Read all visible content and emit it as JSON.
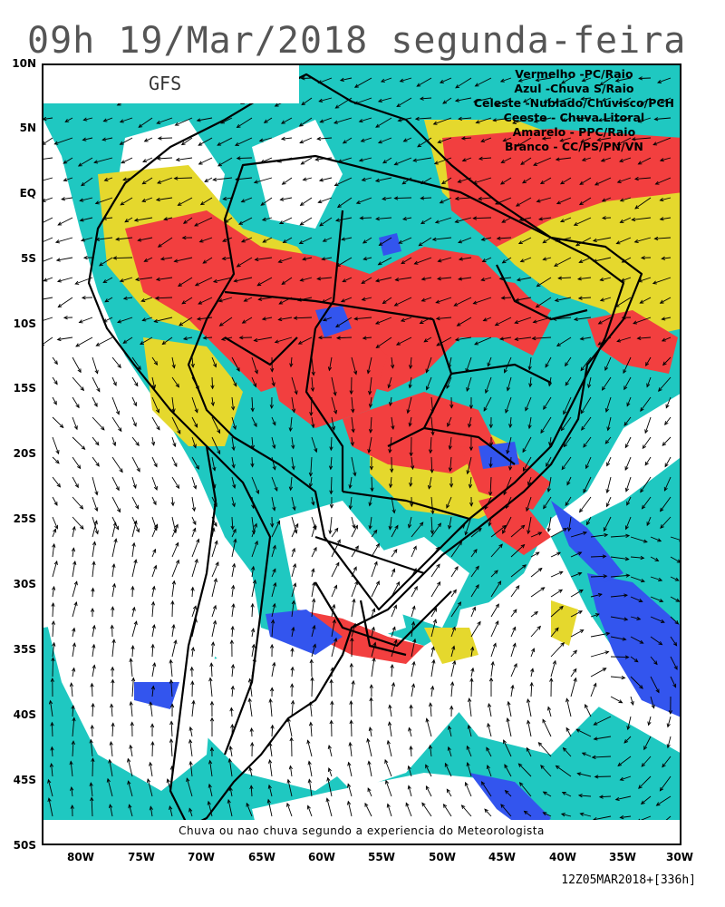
{
  "title": "09h 19/Mar/2018 segunda-feira",
  "model": "GFS",
  "legend": [
    {
      "text": "Vermelho  -PC/Raio",
      "color": "#f23f3f"
    },
    {
      "text": "Azul -Chuva S/Raio",
      "color": "#3355ee"
    },
    {
      "text": "Celeste -Nublado/Chuvisco/PCH",
      "color": "#1fc8c1"
    },
    {
      "text": "Ceeste - Chuva Litoral",
      "color": "#1fc8c1"
    },
    {
      "text": "Amarelo - PPC/Raio",
      "color": "#e5d82d"
    },
    {
      "text": "Branco - CC/PS/PN/VN",
      "color": "#ffffff"
    }
  ],
  "footer": "Chuva ou nao chuva segundo a experiencia do Meteorologista",
  "run_info": "12Z05MAR2018+[336h]",
  "lat_labels": [
    "10N",
    "5N",
    "EQ",
    "5S",
    "10S",
    "15S",
    "20S",
    "25S",
    "30S",
    "35S",
    "40S",
    "45S",
    "50S"
  ],
  "lon_labels": [
    "80W",
    "75W",
    "70W",
    "65W",
    "60W",
    "55W",
    "50W",
    "45W",
    "40W",
    "35W",
    "30W"
  ],
  "colors": {
    "red": "#f23f3f",
    "blue": "#3355ee",
    "cyan": "#1fc8c1",
    "yellow": "#e5d82d",
    "white": "#ffffff"
  }
}
